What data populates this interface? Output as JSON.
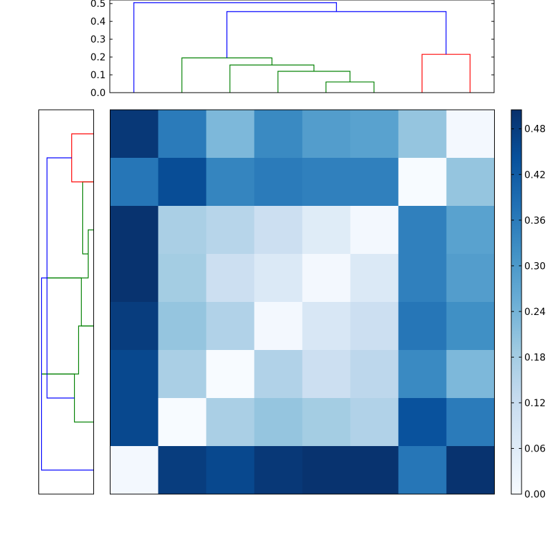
{
  "chart_data": [
    {
      "type": "dendrogram",
      "orientation": "top",
      "ylim": [
        0,
        0.52
      ],
      "yticks": [
        "0.0",
        "0.1",
        "0.2",
        "0.3",
        "0.4",
        "0.5"
      ],
      "grid": false,
      "leaf_count": 8,
      "links": [
        {
          "left": 5,
          "right": 6,
          "height": 0.06,
          "color": "#008000"
        },
        {
          "left": 4,
          "right": 5.5,
          "height": 0.12,
          "color": "#008000"
        },
        {
          "left": 3,
          "right": 4.75,
          "height": 0.155,
          "color": "#008000"
        },
        {
          "left": 2,
          "right": 3.875,
          "height": 0.195,
          "color": "#008000"
        },
        {
          "left": 7,
          "right": 8,
          "height": 0.215,
          "color": "#ff0000"
        },
        {
          "left": 2.9375,
          "right": 7.5,
          "height": 0.455,
          "color": "#0000ff"
        },
        {
          "left": 1,
          "right": 5.21875,
          "height": 0.505,
          "color": "#0000ff"
        }
      ]
    },
    {
      "type": "dendrogram",
      "orientation": "left",
      "grid": false,
      "leaf_count": 8,
      "links": [
        {
          "top": 3,
          "bottom": 4,
          "height": 0.02,
          "color": "#008000"
        },
        {
          "top": 2,
          "bottom": 3.5,
          "height": 0.04,
          "color": "#008000"
        },
        {
          "top": 4,
          "bottom": 5,
          "height": 0.045,
          "color": "#008000"
        },
        {
          "top": 5,
          "bottom": 6,
          "height": 0.055,
          "color": "#008000"
        },
        {
          "top": 6,
          "bottom": 7,
          "height": 0.07,
          "color": "#008000"
        },
        {
          "top": 1,
          "bottom": 2,
          "height": 0.08,
          "color": "#ff0000"
        },
        {
          "top": 1.5,
          "bottom": 6.5,
          "height": 0.17,
          "color": "#0000ff"
        },
        {
          "top": 4,
          "bottom": 8,
          "height": 0.19,
          "color": "#0000ff"
        }
      ]
    },
    {
      "type": "heatmap",
      "rows": 8,
      "cols": 8,
      "values": [
        [
          0.49,
          0.36,
          0.23,
          0.33,
          0.29,
          0.28,
          0.2,
          0.01
        ],
        [
          0.37,
          0.45,
          0.34,
          0.36,
          0.35,
          0.35,
          0.0,
          0.2
        ],
        [
          0.5,
          0.17,
          0.15,
          0.11,
          0.06,
          0.01,
          0.35,
          0.28
        ],
        [
          0.5,
          0.18,
          0.11,
          0.07,
          0.01,
          0.07,
          0.35,
          0.29
        ],
        [
          0.48,
          0.2,
          0.16,
          0.01,
          0.08,
          0.11,
          0.37,
          0.32
        ],
        [
          0.46,
          0.17,
          0.0,
          0.16,
          0.11,
          0.14,
          0.33,
          0.23
        ],
        [
          0.46,
          0.0,
          0.17,
          0.2,
          0.18,
          0.16,
          0.44,
          0.36
        ],
        [
          0.01,
          0.48,
          0.46,
          0.49,
          0.5,
          0.5,
          0.37,
          0.5
        ]
      ],
      "colormap": "Blues",
      "colorbar": {
        "min": 0.0,
        "max": 0.505,
        "ticks": [
          "0.00",
          "0.06",
          "0.12",
          "0.18",
          "0.24",
          "0.30",
          "0.36",
          "0.42",
          "0.48"
        ]
      }
    }
  ]
}
